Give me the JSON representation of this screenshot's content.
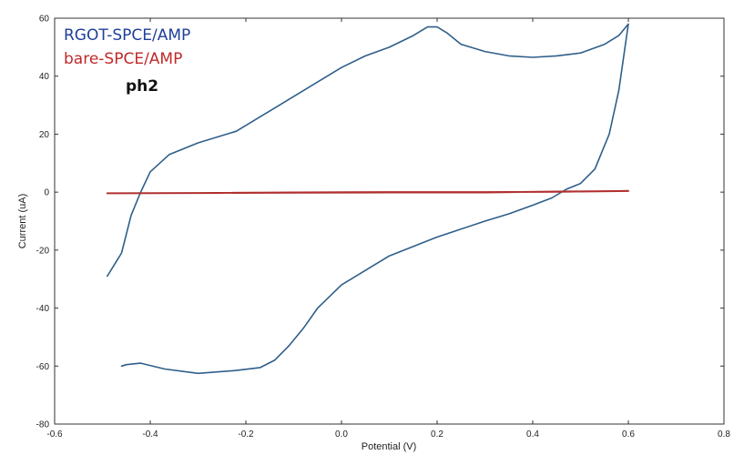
{
  "chart_data": {
    "type": "line",
    "xlabel": "Potential (V)",
    "ylabel": "Current (uA)",
    "xlim": [
      -0.6,
      0.8
    ],
    "ylim": [
      -80,
      60
    ],
    "x_ticks": [
      -0.6,
      -0.4,
      -0.2,
      0.0,
      0.2,
      0.4,
      0.6,
      0.8
    ],
    "y_ticks": [
      -80,
      -60,
      -40,
      -20,
      0,
      20,
      40,
      60
    ],
    "x_tick_labels": [
      "-0.6",
      "-0.4",
      "-0.2",
      "0.0",
      "0.2",
      "0.4",
      "0.6",
      "0.8"
    ],
    "y_tick_labels": [
      "-80",
      "-60",
      "-40",
      "-20",
      "0",
      "20",
      "40",
      "60"
    ],
    "grid": false,
    "legend_position": "top-left",
    "series": [
      {
        "name": "RGOT-SPCE/AMP",
        "color": "#2f5f8a",
        "label_color": "#1f3f99",
        "x": [
          -0.49,
          -0.46,
          -0.44,
          -0.42,
          -0.4,
          -0.36,
          -0.3,
          -0.22,
          -0.15,
          -0.05,
          0.0,
          0.05,
          0.1,
          0.15,
          0.18,
          0.2,
          0.22,
          0.25,
          0.3,
          0.35,
          0.4,
          0.45,
          0.5,
          0.55,
          0.58,
          0.6,
          0.58,
          0.56,
          0.53,
          0.5,
          0.47,
          0.44,
          0.4,
          0.35,
          0.3,
          0.2,
          0.1,
          0.0,
          -0.05,
          -0.08,
          -0.11,
          -0.14,
          -0.17,
          -0.22,
          -0.3,
          -0.37,
          -0.42,
          -0.45,
          -0.46
        ],
        "y": [
          -29,
          -21,
          -8,
          0,
          7,
          13,
          17,
          21,
          28,
          38,
          43,
          47,
          50,
          54,
          57,
          57,
          55,
          51,
          48.5,
          47,
          46.5,
          47,
          48,
          51,
          54,
          58,
          35,
          20,
          8,
          3,
          1,
          -2,
          -4.5,
          -7.5,
          -10,
          -15.5,
          -22,
          -32,
          -40,
          -47,
          -53,
          -58,
          -60.5,
          -61.5,
          -62.5,
          -61,
          -59,
          -59.5,
          -60
        ]
      },
      {
        "name": "bare-SPCE/AMP",
        "color": "#b03030",
        "label_color": "#c02a2a",
        "x": [
          -0.49,
          -0.3,
          -0.1,
          0.1,
          0.3,
          0.45,
          0.6,
          0.45,
          0.3,
          0.1,
          -0.1,
          -0.3,
          -0.49
        ],
        "y": [
          -0.4,
          -0.3,
          -0.1,
          0.0,
          0.0,
          0.1,
          0.4,
          0.2,
          -0.1,
          -0.1,
          -0.2,
          -0.3,
          -0.4
        ]
      }
    ],
    "annotations": [
      {
        "text": "ph2"
      }
    ]
  }
}
